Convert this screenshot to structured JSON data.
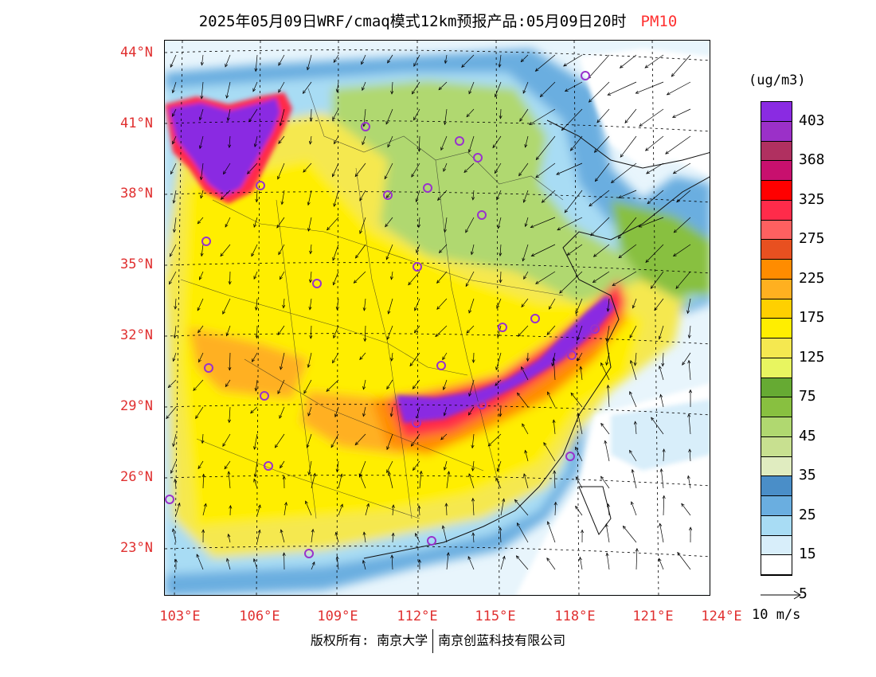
{
  "header": {
    "title": "2025年05月09日WRF/cmaq模式12km预报产品:05月09日20时",
    "variable": "PM10"
  },
  "axes": {
    "lat_labels": [
      "44°N",
      "41°N",
      "38°N",
      "35°N",
      "32°N",
      "29°N",
      "26°N",
      "23°N"
    ],
    "lon_labels": [
      "103°E",
      "106°E",
      "109°E",
      "112°E",
      "115°E",
      "118°E",
      "121°E",
      "124°E"
    ]
  },
  "legend": {
    "unit": "(ug/m3)",
    "labels": [
      "403",
      "368",
      "325",
      "275",
      "225",
      "175",
      "125",
      "75",
      "45",
      "35",
      "25",
      "15",
      "5"
    ],
    "colors": [
      "#8a2be2",
      "#9b30c8",
      "#b03060",
      "#c8106e",
      "#ff0000",
      "#ff2b4a",
      "#ff6060",
      "#e85020",
      "#ff8c00",
      "#ffb020",
      "#ffd000",
      "#ffee00",
      "#f5e850",
      "#e8f560",
      "#66aa33",
      "#88c040",
      "#b0d870",
      "#c8e090",
      "#e0ecc0",
      "#4a8ec8",
      "#6aaee0",
      "#a8dcf4",
      "#d8eefa",
      "#ffffff"
    ],
    "wind_reference": "10 m/s"
  },
  "footer": {
    "copyright_prefix": "版权所有:",
    "org1": "南京大学",
    "org2": "南京创蓝科技有限公司"
  },
  "map": {
    "background_color": "#eef7fc",
    "stations_color": "#9932cc"
  }
}
